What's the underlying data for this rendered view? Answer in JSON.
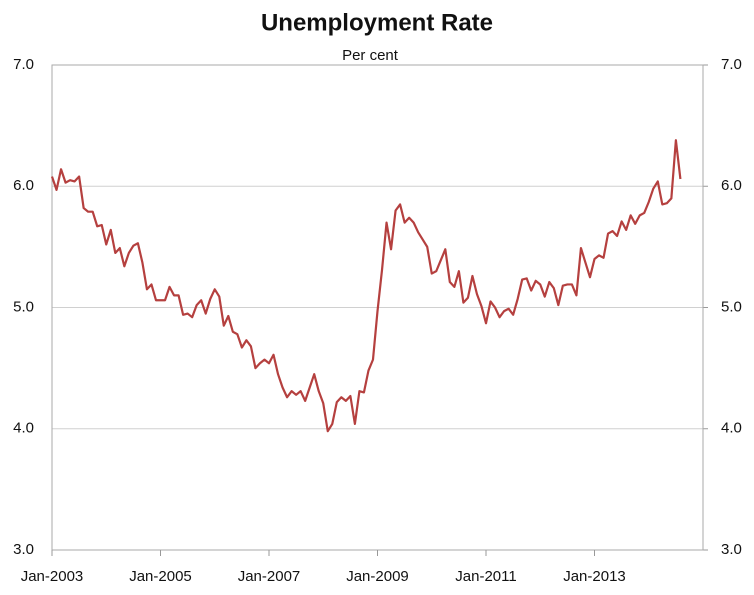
{
  "chart_data": {
    "type": "line",
    "title": "Unemployment Rate",
    "subtitle": "Per cent",
    "categories": [
      "Jan-2003",
      null,
      null,
      null,
      null,
      null,
      null,
      null,
      null,
      null,
      null,
      null,
      null,
      null,
      null,
      null,
      null,
      null,
      null,
      null,
      null,
      null,
      null,
      null,
      "Jan-2005",
      null,
      null,
      null,
      null,
      null,
      null,
      null,
      null,
      null,
      null,
      null,
      null,
      null,
      null,
      null,
      null,
      null,
      null,
      null,
      null,
      null,
      null,
      null,
      "Jan-2007",
      null,
      null,
      null,
      null,
      null,
      null,
      null,
      null,
      null,
      null,
      null,
      null,
      null,
      null,
      null,
      null,
      null,
      null,
      null,
      null,
      null,
      null,
      null,
      "Jan-2009",
      null,
      null,
      null,
      null,
      null,
      null,
      null,
      null,
      null,
      null,
      null,
      null,
      null,
      null,
      null,
      null,
      null,
      null,
      null,
      null,
      null,
      null,
      null,
      "Jan-2011",
      null,
      null,
      null,
      null,
      null,
      null,
      null,
      null,
      null,
      null,
      null,
      null,
      null,
      null,
      null,
      null,
      null,
      null,
      null,
      null,
      null,
      null,
      null,
      "Jan-2013",
      null,
      null,
      null,
      null,
      null,
      null,
      null,
      null,
      null,
      null,
      null,
      null,
      null,
      null,
      null,
      null,
      null,
      null,
      null
    ],
    "series": [
      {
        "name": "Unemployment Rate",
        "color": "#b5403f",
        "values": [
          6.08,
          5.97,
          6.14,
          6.03,
          6.05,
          6.04,
          6.08,
          5.82,
          5.79,
          5.79,
          5.67,
          5.68,
          5.52,
          5.64,
          5.45,
          5.49,
          5.34,
          5.45,
          5.51,
          5.53,
          5.37,
          5.15,
          5.19,
          5.06,
          5.06,
          5.06,
          5.17,
          5.1,
          5.1,
          4.94,
          4.95,
          4.92,
          5.02,
          5.06,
          4.95,
          5.07,
          5.15,
          5.09,
          4.85,
          4.93,
          4.8,
          4.78,
          4.67,
          4.73,
          4.68,
          4.5,
          4.54,
          4.57,
          4.54,
          4.61,
          4.45,
          4.34,
          4.26,
          4.31,
          4.28,
          4.31,
          4.23,
          4.34,
          4.45,
          4.31,
          4.21,
          3.98,
          4.04,
          4.22,
          4.26,
          4.23,
          4.27,
          4.04,
          4.31,
          4.3,
          4.48,
          4.57,
          4.97,
          5.31,
          5.7,
          5.48,
          5.8,
          5.85,
          5.7,
          5.74,
          5.7,
          5.62,
          5.56,
          5.5,
          5.28,
          5.3,
          5.39,
          5.48,
          5.21,
          5.17,
          5.3,
          5.04,
          5.08,
          5.26,
          5.11,
          5.01,
          4.87,
          5.05,
          5.0,
          4.92,
          4.97,
          4.99,
          4.94,
          5.07,
          5.23,
          5.24,
          5.14,
          5.22,
          5.19,
          5.09,
          5.21,
          5.16,
          5.02,
          5.18,
          5.19,
          5.19,
          5.1,
          5.49,
          5.37,
          5.25,
          5.4,
          5.43,
          5.41,
          5.61,
          5.63,
          5.59,
          5.71,
          5.64,
          5.76,
          5.69,
          5.76,
          5.78,
          5.87,
          5.98,
          6.04,
          5.85,
          5.86,
          5.9,
          6.38,
          6.06
        ]
      }
    ],
    "ylim": [
      3,
      7
    ],
    "yticks": [
      {
        "value": 3,
        "label": "3.0"
      },
      {
        "value": 4,
        "label": "4.0"
      },
      {
        "value": 5,
        "label": "5.0"
      },
      {
        "value": 6,
        "label": "6.0"
      },
      {
        "value": 7,
        "label": "7.0"
      }
    ],
    "y2lim": [
      3,
      7
    ],
    "y2ticks": [
      {
        "value": 3,
        "label": "3.0"
      },
      {
        "value": 4,
        "label": "4.0"
      },
      {
        "value": 5,
        "label": "5.0"
      },
      {
        "value": 6,
        "label": "6.0"
      },
      {
        "value": 7,
        "label": "7.0"
      }
    ],
    "grid": true
  }
}
